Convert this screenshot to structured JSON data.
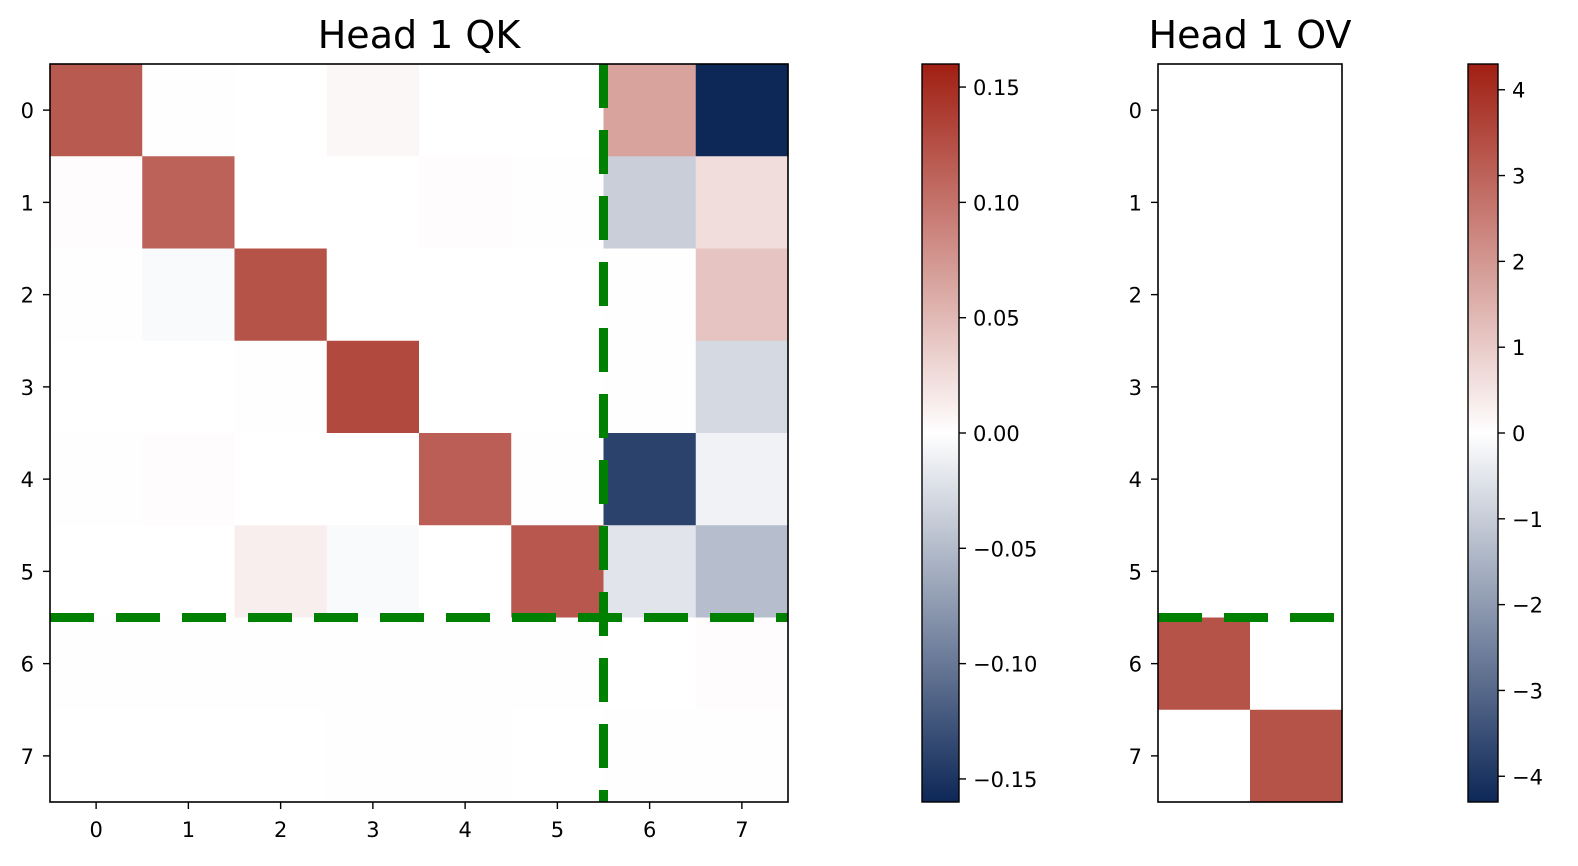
{
  "figure": {
    "cmap": {
      "negative_color": "#0d2757",
      "zero_color": "#ffffff",
      "positive_color": "#a01f12"
    },
    "overlay_color": "#008000",
    "panels": [
      {
        "title": "Head 1 QK"
      },
      {
        "title": "Head 1 OV"
      }
    ]
  },
  "chart_data": [
    {
      "type": "heatmap",
      "title": "Head 1 QK",
      "rows": [
        "0",
        "1",
        "2",
        "3",
        "4",
        "5",
        "6",
        "7"
      ],
      "cols": [
        "0",
        "1",
        "2",
        "3",
        "4",
        "5",
        "6",
        "7"
      ],
      "values": [
        [
          0.118,
          0.001,
          0.0,
          0.006,
          0.0,
          0.0,
          0.066,
          -0.163
        ],
        [
          0.002,
          0.112,
          0.0,
          0.0,
          0.002,
          0.001,
          -0.036,
          0.024
        ],
        [
          0.001,
          -0.004,
          0.123,
          0.0,
          0.0,
          0.0,
          0.001,
          0.042
        ],
        [
          0.0,
          0.0,
          0.001,
          0.13,
          0.0,
          0.0,
          0.001,
          -0.028
        ],
        [
          0.001,
          0.002,
          0.0,
          0.0,
          0.115,
          0.001,
          -0.14,
          -0.01
        ],
        [
          0.0,
          0.0,
          0.012,
          -0.004,
          0.0,
          0.12,
          -0.02,
          -0.048
        ],
        [
          0.001,
          0.001,
          0.001,
          0.001,
          0.001,
          0.001,
          0.0,
          0.002
        ],
        [
          0.0,
          0.0,
          0.0,
          0.001,
          0.001,
          0.0,
          0.001,
          0.001
        ]
      ],
      "colorbar": {
        "min": -0.16,
        "max": 0.16,
        "ticks": [
          0.15,
          0.1,
          0.05,
          0.0,
          -0.05,
          -0.1,
          -0.15
        ],
        "tick_labels": [
          "0.15",
          "0.10",
          "0.05",
          "0.00",
          "−0.05",
          "−0.10",
          "−0.15"
        ]
      },
      "overlays": [
        {
          "orientation": "horizontal",
          "at": 5.5,
          "style": "dashed",
          "color": "green"
        },
        {
          "orientation": "vertical",
          "at": 5.5,
          "style": "dashed",
          "color": "green"
        }
      ]
    },
    {
      "type": "heatmap",
      "title": "Head 1 OV",
      "rows": [
        "0",
        "1",
        "2",
        "3",
        "4",
        "5",
        "6",
        "7"
      ],
      "cols": [
        "",
        ""
      ],
      "values": [
        [
          0.0,
          0.0
        ],
        [
          0.0,
          0.0
        ],
        [
          0.0,
          0.0
        ],
        [
          0.0,
          0.0
        ],
        [
          0.0,
          0.0
        ],
        [
          0.0,
          0.0
        ],
        [
          3.3,
          0.0
        ],
        [
          0.0,
          3.3
        ]
      ],
      "colorbar": {
        "min": -4.3,
        "max": 4.3,
        "ticks": [
          4,
          3,
          2,
          1,
          0,
          -1,
          -2,
          -3,
          -4
        ],
        "tick_labels": [
          "4",
          "3",
          "2",
          "1",
          "0",
          "−1",
          "−2",
          "−3",
          "−4"
        ]
      },
      "overlays": [
        {
          "orientation": "horizontal",
          "at": 5.5,
          "style": "dashed",
          "color": "green"
        }
      ]
    }
  ]
}
